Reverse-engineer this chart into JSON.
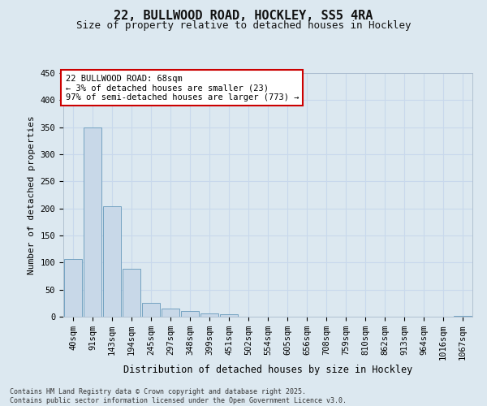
{
  "title1": "22, BULLWOOD ROAD, HOCKLEY, SS5 4RA",
  "title2": "Size of property relative to detached houses in Hockley",
  "xlabel": "Distribution of detached houses by size in Hockley",
  "ylabel": "Number of detached properties",
  "bin_labels": [
    "40sqm",
    "91sqm",
    "143sqm",
    "194sqm",
    "245sqm",
    "297sqm",
    "348sqm",
    "399sqm",
    "451sqm",
    "502sqm",
    "554sqm",
    "605sqm",
    "656sqm",
    "708sqm",
    "759sqm",
    "810sqm",
    "862sqm",
    "913sqm",
    "964sqm",
    "1016sqm",
    "1067sqm"
  ],
  "bar_values": [
    107,
    350,
    204,
    88,
    25,
    15,
    10,
    6,
    5,
    0,
    0,
    0,
    0,
    0,
    0,
    0,
    0,
    0,
    0,
    0,
    2
  ],
  "bar_color": "#c8d8e8",
  "bar_edge_color": "#6699bb",
  "annotation_line1": "22 BULLWOOD ROAD: 68sqm",
  "annotation_line2": "← 3% of detached houses are smaller (23)",
  "annotation_line3": "97% of semi-detached houses are larger (773) →",
  "annotation_box_color": "#ffffff",
  "annotation_box_edge_color": "#cc0000",
  "grid_color": "#c8d8ec",
  "bg_color": "#dce8f0",
  "fig_bg_color": "#dce8f0",
  "ylim": [
    0,
    450
  ],
  "yticks": [
    0,
    50,
    100,
    150,
    200,
    250,
    300,
    350,
    400,
    450
  ],
  "footer_text": "Contains HM Land Registry data © Crown copyright and database right 2025.\nContains public sector information licensed under the Open Government Licence v3.0.",
  "title1_fontsize": 11,
  "title2_fontsize": 9,
  "tick_fontsize": 7.5,
  "ylabel_fontsize": 8,
  "xlabel_fontsize": 8.5
}
